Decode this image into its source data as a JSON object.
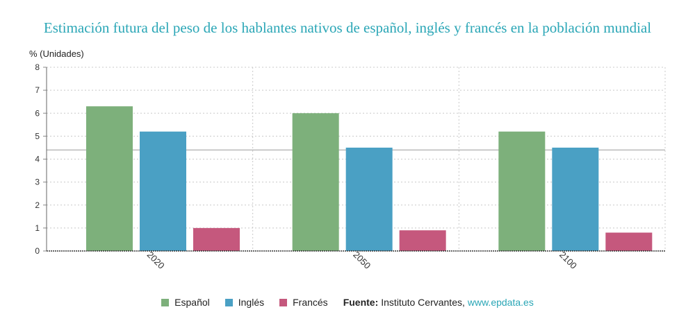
{
  "chart_data": {
    "type": "bar",
    "title": "Estimación futura del peso de los hablantes nativos de español, inglés y francés en la población mundial",
    "ylabel": "% (Unidades)",
    "xlabel": "",
    "categories": [
      "2020",
      "2050",
      "2100"
    ],
    "series": [
      {
        "name": "Español",
        "values": [
          6.3,
          6.0,
          5.2
        ],
        "color": "#7db07b"
      },
      {
        "name": "Inglés",
        "values": [
          5.2,
          4.5,
          4.5
        ],
        "color": "#4aa0c4"
      },
      {
        "name": "Francés",
        "values": [
          1.0,
          0.9,
          0.8
        ],
        "color": "#c5587d"
      }
    ],
    "ylim": [
      0,
      8
    ],
    "yticks": [
      "0",
      "1",
      "2",
      "3",
      "4",
      "5",
      "6",
      "7",
      "8"
    ],
    "reference_line": 4.4,
    "grid": true,
    "legend_position": "bottom"
  },
  "source": {
    "label": "Fuente:",
    "text": "Instituto Cervantes,",
    "link": "www.epdata.es"
  }
}
